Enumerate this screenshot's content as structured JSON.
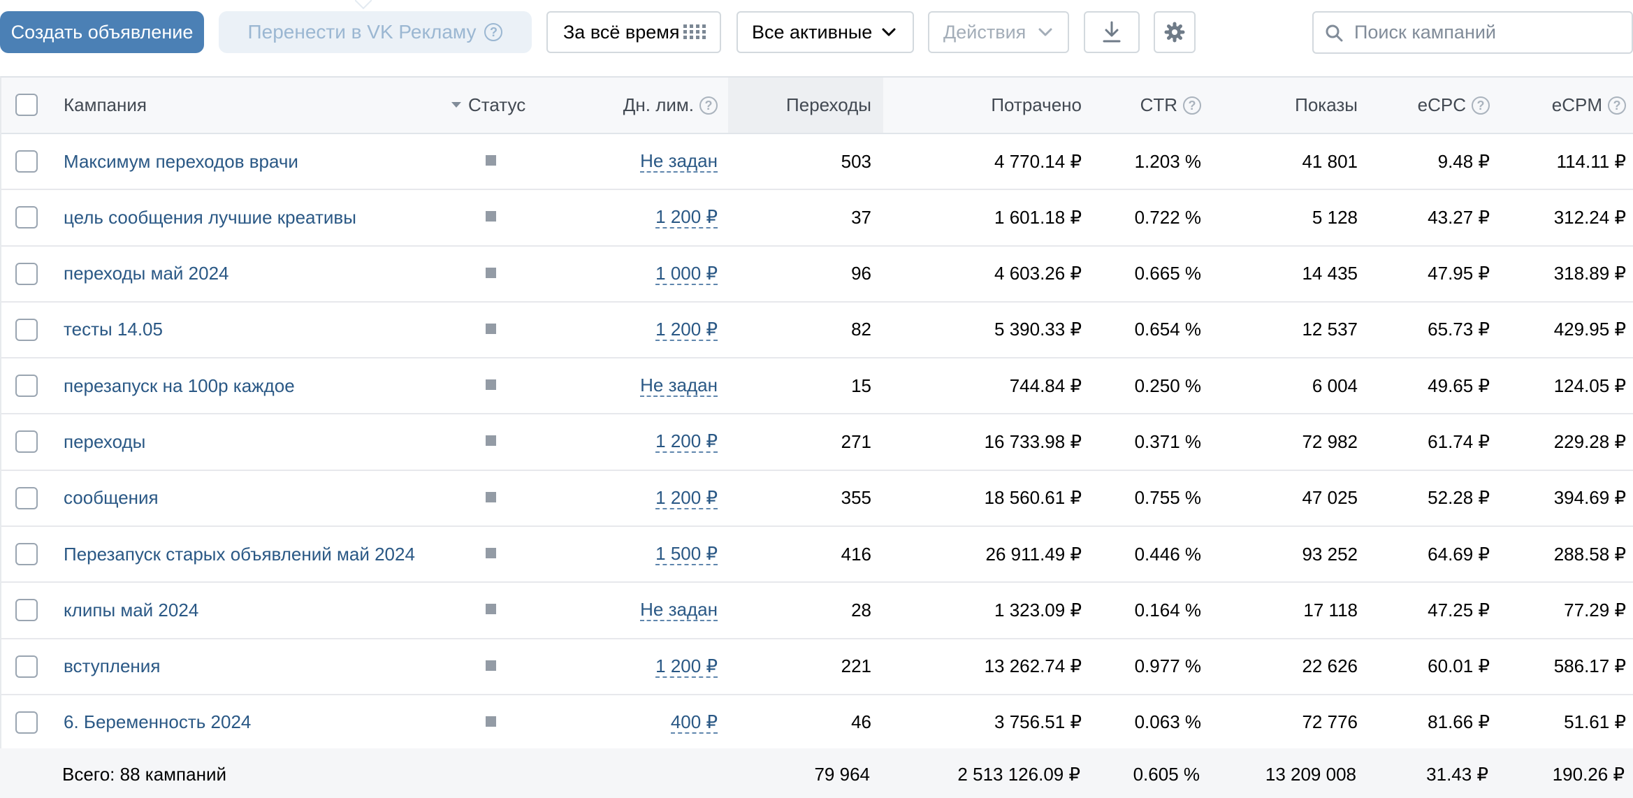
{
  "toolbar": {
    "create_label": "Создать объявление",
    "transfer_label": "Перенести в VK Рекламу",
    "period_label": "За всё время",
    "filter_label": "Все активные",
    "actions_label": "Действия",
    "search_placeholder": "Поиск кампаний"
  },
  "columns": {
    "campaign": "Кампания",
    "status": "Статус",
    "daily_limit": "Дн. лим.",
    "clicks": "Переходы",
    "spent": "Потрачено",
    "ctr": "CTR",
    "impressions": "Показы",
    "ecpc": "eCPC",
    "ecpm": "eCPM"
  },
  "rows": [
    {
      "name": "Максимум переходов врачи",
      "limit": "Не задан",
      "clicks": "503",
      "spent": "4 770.14 ₽",
      "ctr": "1.203 %",
      "impressions": "41 801",
      "ecpc": "9.48 ₽",
      "ecpm": "114.11 ₽"
    },
    {
      "name": "цель сообщения лучшие креативы",
      "limit": "1 200 ₽",
      "clicks": "37",
      "spent": "1 601.18 ₽",
      "ctr": "0.722 %",
      "impressions": "5 128",
      "ecpc": "43.27 ₽",
      "ecpm": "312.24 ₽"
    },
    {
      "name": "переходы май 2024",
      "limit": "1 000 ₽",
      "clicks": "96",
      "spent": "4 603.26 ₽",
      "ctr": "0.665 %",
      "impressions": "14 435",
      "ecpc": "47.95 ₽",
      "ecpm": "318.89 ₽"
    },
    {
      "name": "тесты 14.05",
      "limit": "1 200 ₽",
      "clicks": "82",
      "spent": "5 390.33 ₽",
      "ctr": "0.654 %",
      "impressions": "12 537",
      "ecpc": "65.73 ₽",
      "ecpm": "429.95 ₽"
    },
    {
      "name": "перезапуск на 100р каждое",
      "limit": "Не задан",
      "clicks": "15",
      "spent": "744.84 ₽",
      "ctr": "0.250 %",
      "impressions": "6 004",
      "ecpc": "49.65 ₽",
      "ecpm": "124.05 ₽"
    },
    {
      "name": "переходы",
      "limit": "1 200 ₽",
      "clicks": "271",
      "spent": "16 733.98 ₽",
      "ctr": "0.371 %",
      "impressions": "72 982",
      "ecpc": "61.74 ₽",
      "ecpm": "229.28 ₽"
    },
    {
      "name": "сообщения",
      "limit": "1 200 ₽",
      "clicks": "355",
      "spent": "18 560.61 ₽",
      "ctr": "0.755 %",
      "impressions": "47 025",
      "ecpc": "52.28 ₽",
      "ecpm": "394.69 ₽"
    },
    {
      "name": "Перезапуск старых объявлений май 2024",
      "limit": "1 500 ₽",
      "clicks": "416",
      "spent": "26 911.49 ₽",
      "ctr": "0.446 %",
      "impressions": "93 252",
      "ecpc": "64.69 ₽",
      "ecpm": "288.58 ₽"
    },
    {
      "name": "клипы май 2024",
      "limit": "Не задан",
      "clicks": "28",
      "spent": "1 323.09 ₽",
      "ctr": "0.164 %",
      "impressions": "17 118",
      "ecpc": "47.25 ₽",
      "ecpm": "77.29 ₽"
    },
    {
      "name": "вступления",
      "limit": "1 200 ₽",
      "clicks": "221",
      "spent": "13 262.74 ₽",
      "ctr": "0.977 %",
      "impressions": "22 626",
      "ecpc": "60.01 ₽",
      "ecpm": "586.17 ₽"
    },
    {
      "name": "6. Беременность 2024",
      "limit": "400 ₽",
      "clicks": "46",
      "spent": "3 756.51 ₽",
      "ctr": "0.063 %",
      "impressions": "72 776",
      "ecpc": "81.66 ₽",
      "ecpm": "51.61 ₽"
    }
  ],
  "totals": {
    "label": "Всего: 88 кампаний",
    "clicks": "79 964",
    "spent": "2 513 126.09 ₽",
    "ctr": "0.605 %",
    "impressions": "13 209 008",
    "ecpc": "31.43 ₽",
    "ecpm": "190.26 ₽"
  },
  "colors": {
    "primary": "#4b80b5",
    "link": "#2a5885",
    "muted": "#818c99"
  }
}
